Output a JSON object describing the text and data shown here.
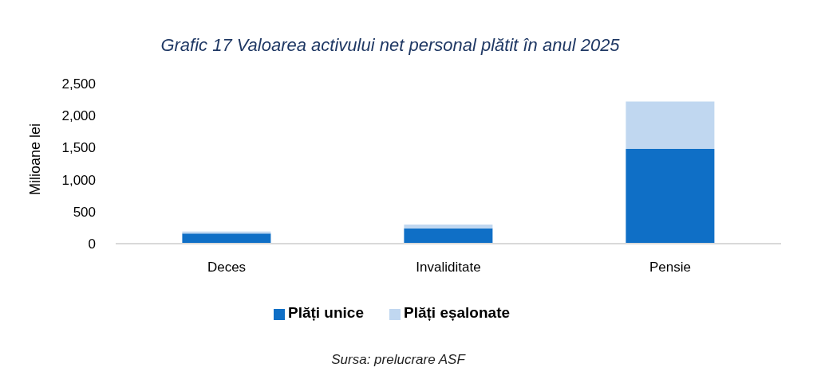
{
  "chart_data": {
    "type": "bar",
    "title": "Grafic 17 Valoarea activului net personal plătit în anul 2025",
    "ylabel": "Milioane lei",
    "categories": [
      "Deces",
      "Invaliditate",
      "Pensie"
    ],
    "series": [
      {
        "name": "Plăți unice",
        "color": "#0f6fc6",
        "values": [
          160,
          240,
          1480
        ]
      },
      {
        "name": "Plăți eșalonate",
        "color": "#c0d7f0",
        "values": [
          30,
          60,
          740
        ]
      }
    ],
    "stacked": true,
    "ylim": [
      0,
      2500
    ],
    "yticks": [
      0,
      500,
      {
        "value": 1000,
        "label": "1,000"
      },
      {
        "value": 1500,
        "label": "1,500"
      },
      {
        "value": 2000,
        "label": "2,000"
      },
      {
        "value": 2500,
        "label": "2,500"
      }
    ],
    "legend": "bottom",
    "annotations": [
      "Sursa: prelucrare ASF"
    ]
  }
}
